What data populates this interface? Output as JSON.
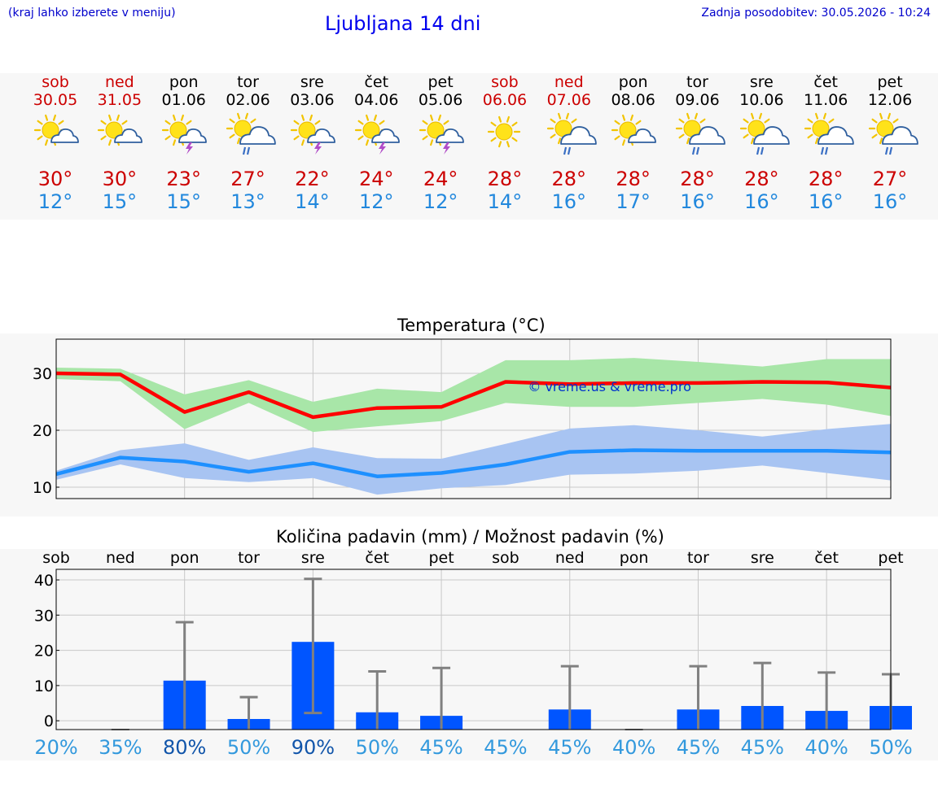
{
  "header": {
    "note": "(kraj lahko izberete v meniju)",
    "title": "Ljubljana 14 dni",
    "updated": "Zadnja posodobitev: 30.05.2026 - 10:24"
  },
  "colors": {
    "weekend": "#cc0000",
    "weekday": "#000000",
    "tmax": "#cc0000",
    "tmin": "#2288dd",
    "max_line": "#ff0000",
    "max_band": "#a8e6a8",
    "min_line": "#1e90ff",
    "min_band": "#a8c4f2",
    "bar": "#0055ff",
    "errorbar": "#808080"
  },
  "days": [
    {
      "name": "sob",
      "date": "30.05",
      "weekend": true,
      "icon": "sun-cloud-icon",
      "tmax": "30°",
      "tmin": "12°"
    },
    {
      "name": "ned",
      "date": "31.05",
      "weekend": true,
      "icon": "sun-cloud-icon",
      "tmax": "30°",
      "tmin": "15°"
    },
    {
      "name": "pon",
      "date": "01.06",
      "weekend": false,
      "icon": "sun-cloud-storm-icon",
      "tmax": "23°",
      "tmin": "15°"
    },
    {
      "name": "tor",
      "date": "02.06",
      "weekend": false,
      "icon": "sun-cloud-rain-icon",
      "tmax": "27°",
      "tmin": "13°"
    },
    {
      "name": "sre",
      "date": "03.06",
      "weekend": false,
      "icon": "sun-cloud-storm-icon",
      "tmax": "22°",
      "tmin": "14°"
    },
    {
      "name": "čet",
      "date": "04.06",
      "weekend": false,
      "icon": "sun-cloud-storm-icon",
      "tmax": "24°",
      "tmin": "12°"
    },
    {
      "name": "pet",
      "date": "05.06",
      "weekend": false,
      "icon": "sun-cloud-storm-icon",
      "tmax": "24°",
      "tmin": "12°"
    },
    {
      "name": "sob",
      "date": "06.06",
      "weekend": true,
      "icon": "sun-icon",
      "tmax": "28°",
      "tmin": "14°"
    },
    {
      "name": "ned",
      "date": "07.06",
      "weekend": true,
      "icon": "sun-cloud-rain-icon",
      "tmax": "28°",
      "tmin": "16°"
    },
    {
      "name": "pon",
      "date": "08.06",
      "weekend": false,
      "icon": "sun-cloud-icon",
      "tmax": "28°",
      "tmin": "17°"
    },
    {
      "name": "tor",
      "date": "09.06",
      "weekend": false,
      "icon": "sun-cloud-rain-icon",
      "tmax": "28°",
      "tmin": "16°"
    },
    {
      "name": "sre",
      "date": "10.06",
      "weekend": false,
      "icon": "sun-cloud-rain-icon",
      "tmax": "28°",
      "tmin": "16°"
    },
    {
      "name": "čet",
      "date": "11.06",
      "weekend": false,
      "icon": "sun-cloud-rain-icon",
      "tmax": "28°",
      "tmin": "16°"
    },
    {
      "name": "pet",
      "date": "12.06",
      "weekend": false,
      "icon": "sun-cloud-rain-icon",
      "tmax": "27°",
      "tmin": "16°"
    }
  ],
  "chart_data": [
    {
      "type": "line",
      "title": "Temperatura (°C)",
      "watermark": "© vreme.us & vreme.pro",
      "ylim": [
        8,
        36
      ],
      "yticks": [
        10,
        20,
        30
      ],
      "grid": true,
      "series": [
        {
          "role": "max_line",
          "values": [
            30,
            29.8,
            23.2,
            26.7,
            22.3,
            23.9,
            24.1,
            28.5,
            28.1,
            28.3,
            28.3,
            28.5,
            28.4,
            27.5
          ]
        },
        {
          "role": "max_band_upper",
          "values": [
            31,
            30.8,
            26.3,
            28.8,
            25,
            27.3,
            26.7,
            32.3,
            32.3,
            32.7,
            32,
            31.2,
            32.5,
            32.5
          ]
        },
        {
          "role": "max_band_lower",
          "values": [
            29,
            28.6,
            20.2,
            24.8,
            19.7,
            20.7,
            21.6,
            24.8,
            24.1,
            24.1,
            24.8,
            25.5,
            24.5,
            22.5
          ]
        },
        {
          "role": "min_line",
          "values": [
            12.3,
            15.2,
            14.5,
            12.7,
            14.2,
            11.9,
            12.5,
            14,
            16.2,
            16.5,
            16.4,
            16.4,
            16.4,
            16.1
          ]
        },
        {
          "role": "min_band_upper",
          "values": [
            12.9,
            16.5,
            17.7,
            14.8,
            17,
            15.1,
            15,
            17.6,
            20.3,
            20.9,
            20,
            18.9,
            20.2,
            21.1
          ]
        },
        {
          "role": "min_band_lower",
          "values": [
            11.3,
            14,
            11.6,
            10.9,
            11.6,
            8.7,
            9.8,
            10.4,
            12.2,
            12.4,
            12.9,
            13.8,
            12.5,
            11.2
          ]
        }
      ]
    },
    {
      "type": "bar",
      "title": "Količina padavin (mm) / Možnost padavin (%)",
      "categories": [
        "sob",
        "ned",
        "pon",
        "tor",
        "sre",
        "čet",
        "pet",
        "sob",
        "ned",
        "pon",
        "tor",
        "sre",
        "čet",
        "pet"
      ],
      "ylim": [
        -2.5,
        43
      ],
      "yticks": [
        0,
        10,
        20,
        30,
        40
      ],
      "ytick_labels": [
        "0",
        "10",
        "20",
        "30",
        "40"
      ],
      "values": [
        0,
        0,
        11.4,
        0.5,
        22.4,
        2.4,
        1.4,
        0,
        3.2,
        0,
        3.2,
        4.2,
        2.8,
        4.2
      ],
      "error_high": [
        null,
        0,
        28,
        6.7,
        40.3,
        14,
        15,
        null,
        15.5,
        0,
        15.5,
        16.4,
        13.7,
        13.2
      ],
      "error_low": [
        null,
        0,
        0,
        0,
        2.2,
        0,
        0,
        null,
        0,
        0,
        0,
        0,
        0,
        0
      ],
      "probability": [
        "20%",
        "35%",
        "80%",
        "50%",
        "90%",
        "50%",
        "45%",
        "45%",
        "45%",
        "40%",
        "45%",
        "45%",
        "40%",
        "50%"
      ],
      "probability_colors": [
        "#3399dd",
        "#3399dd",
        "#1155aa",
        "#3399dd",
        "#1155aa",
        "#3399dd",
        "#3399dd",
        "#3399dd",
        "#3399dd",
        "#3399dd",
        "#3399dd",
        "#3399dd",
        "#3399dd",
        "#3399dd"
      ]
    }
  ]
}
